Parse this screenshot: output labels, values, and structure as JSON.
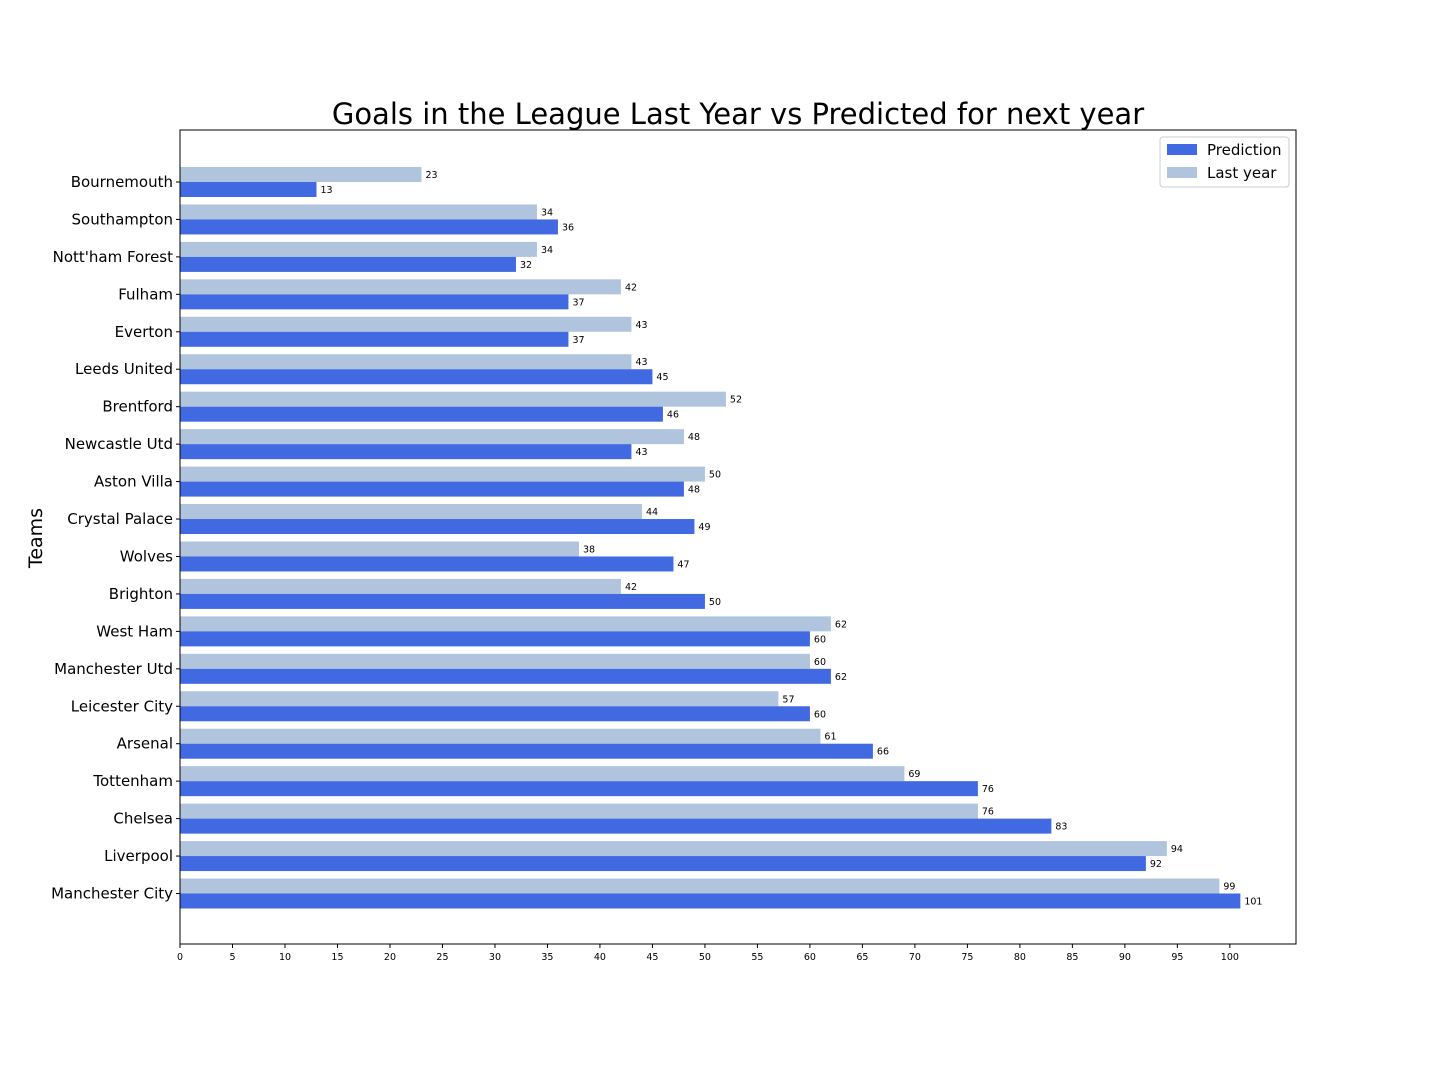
{
  "chart_data": {
    "type": "bar",
    "orientation": "horizontal",
    "title": "Goals in the League Last Year vs Predicted for next year",
    "xlabel": "",
    "ylabel": "Teams",
    "xlim": [
      0,
      106.3
    ],
    "x_ticks": [
      0,
      5,
      10,
      15,
      20,
      25,
      30,
      35,
      40,
      45,
      50,
      55,
      60,
      65,
      70,
      75,
      80,
      85,
      90,
      95,
      100
    ],
    "grid": false,
    "legend_position": "top-right",
    "categories": [
      "Manchester City",
      "Liverpool",
      "Chelsea",
      "Tottenham",
      "Arsenal",
      "Leicester City",
      "Manchester Utd",
      "West Ham",
      "Brighton",
      "Wolves",
      "Crystal Palace",
      "Aston Villa",
      "Newcastle Utd",
      "Brentford",
      "Leeds United",
      "Everton",
      "Fulham",
      "Nott'ham Forest",
      "Southampton",
      "Bournemouth"
    ],
    "series": [
      {
        "name": "Prediction",
        "color": "#4169e1",
        "values": [
          101,
          92,
          83,
          76,
          66,
          60,
          62,
          60,
          50,
          47,
          49,
          48,
          43,
          46,
          45,
          37,
          37,
          32,
          36,
          13
        ]
      },
      {
        "name": "Last year",
        "color": "#b0c4de",
        "values": [
          99,
          94,
          76,
          69,
          61,
          57,
          60,
          62,
          42,
          38,
          44,
          50,
          48,
          52,
          43,
          43,
          42,
          34,
          34,
          23
        ]
      }
    ]
  }
}
